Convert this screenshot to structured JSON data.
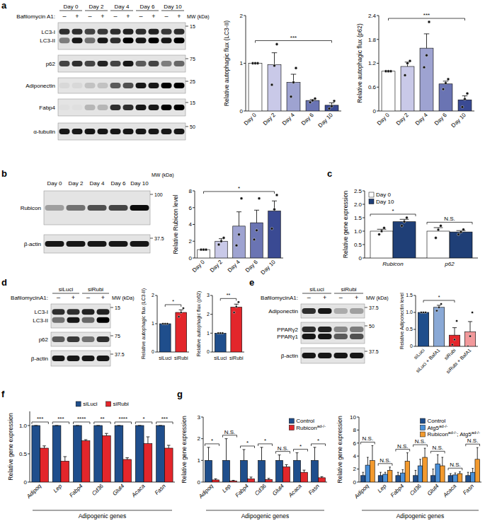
{
  "panel_labels": [
    "a",
    "b",
    "c",
    "d",
    "e",
    "f",
    "g"
  ],
  "blots": [
    {
      "groups": [
        {
          "label": "Day 0",
          "span": 2
        },
        {
          "label": "Day 2",
          "span": 2
        },
        {
          "label": "Day 4",
          "span": 2
        },
        {
          "label": "Day 6",
          "span": 2
        },
        {
          "label": "Day 10",
          "span": 2
        }
      ],
      "treatment": {
        "label": "Bafilomycin A1:",
        "marks": [
          "–",
          "+",
          "–",
          "+",
          "–",
          "+",
          "–",
          "+",
          "–",
          "+"
        ]
      },
      "mw_title": "MW (kDa)",
      "rows": [
        {
          "labels": [
            "LC3-I",
            "LC3-II"
          ],
          "bands": [
            [
              0.8,
              0.8,
              0.7,
              0.75,
              0.8,
              0.85,
              0.8,
              0.85,
              0.75,
              0.8
            ],
            [
              0.45,
              0.9,
              0.5,
              0.9,
              0.8,
              1,
              0.9,
              1,
              0.9,
              1
            ]
          ],
          "mw": "15"
        },
        {
          "labels": [
            "p62"
          ],
          "bands": [
            [
              0.7,
              0.8,
              0.7,
              0.85,
              0.7,
              0.9,
              0.6,
              0.7,
              0.45,
              0.55
            ]
          ],
          "mw": "75"
        },
        {
          "labels": [
            "Adiponectin"
          ],
          "bands": [
            [
              0.05,
              0.05,
              0.15,
              0.15,
              0.6,
              0.65,
              0.9,
              0.9,
              1,
              1
            ]
          ],
          "mw": "25"
        },
        {
          "labels": [
            "Fabp4"
          ],
          "bands": [
            [
              0.02,
              0.02,
              0.2,
              0.2,
              0.8,
              0.8,
              0.9,
              0.9,
              1,
              1
            ]
          ],
          "mw": "15"
        },
        {
          "labels": [
            "α-tubulin"
          ],
          "bands": [
            [
              0.9,
              0.9,
              0.9,
              0.9,
              0.9,
              0.9,
              0.9,
              0.9,
              0.9,
              0.9
            ]
          ],
          "mw": "50"
        }
      ]
    },
    {
      "groups": [
        {
          "label": "Day 0",
          "span": 1
        },
        {
          "label": "Day 2",
          "span": 1
        },
        {
          "label": "Day 4",
          "span": 1
        },
        {
          "label": "Day 6",
          "span": 1
        },
        {
          "label": "Day 10",
          "span": 1
        }
      ],
      "mw_title": "MW (kDa)",
      "rows": [
        {
          "labels": [
            "Rubicon"
          ],
          "bands": [
            [
              0.3,
              0.5,
              0.65,
              0.7,
              0.95
            ]
          ],
          "mw": "100"
        },
        {
          "labels": [
            "β-actin"
          ],
          "bands": [
            [
              0.9,
              0.9,
              0.9,
              0.9,
              0.9
            ]
          ],
          "mw": "37.5"
        }
      ]
    },
    {
      "groups": [
        {
          "label": "siLuci",
          "span": 2
        },
        {
          "label": "siRubi",
          "span": 2
        }
      ],
      "treatment": {
        "label": "BafilomycinA1:",
        "marks": [
          "–",
          "+",
          "–",
          "+"
        ]
      },
      "mw_title": "MW (kDa)",
      "rows": [
        {
          "labels": [
            "LC3-I",
            "LC3-II"
          ],
          "bands": [
            [
              0.8,
              0.8,
              0.85,
              0.85
            ],
            [
              0.5,
              0.9,
              0.55,
              1
            ]
          ],
          "mw": "15"
        },
        {
          "labels": [
            "p62"
          ],
          "bands": [
            [
              0.6,
              0.75,
              0.5,
              0.8
            ]
          ],
          "mw": "75"
        },
        {
          "labels": [
            "β-actin"
          ],
          "bands": [
            [
              0.9,
              0.9,
              0.9,
              0.9
            ]
          ],
          "mw": "37.5"
        }
      ]
    },
    {
      "groups": [
        {
          "label": "siLuci",
          "span": 2
        },
        {
          "label": "siRubi",
          "span": 2
        }
      ],
      "treatment": {
        "label": "BafilomycinA1:",
        "marks": [
          "–",
          "+",
          "–",
          "+"
        ]
      },
      "mw_title": "MW (kDa)",
      "rows": [
        {
          "labels": [
            "Adiponectin"
          ],
          "bands": [
            [
              0.8,
              0.9,
              0.25,
              0.3
            ]
          ],
          "mw": "37.5"
        },
        {
          "labels": [
            "PPARγ2",
            "PPARγ1"
          ],
          "bands": [
            [
              0.8,
              0.85,
              0.4,
              0.45
            ],
            [
              0.9,
              0.9,
              0.6,
              0.65
            ]
          ],
          "mw": "50"
        },
        {
          "labels": [
            "β-actin"
          ],
          "bands": [
            [
              0.9,
              0.9,
              0.9,
              0.9
            ]
          ],
          "mw": "37.5"
        }
      ]
    }
  ],
  "chart_data": [
    {
      "type": "bar",
      "y_label": "Relative autophagic flux (LC3-II)",
      "categories": [
        "Day 0",
        "Day 2",
        "Day 4",
        "Day 6",
        "Day 10"
      ],
      "ylim": [
        0,
        2
      ],
      "yticks": [
        0,
        1,
        2
      ],
      "series": [
        {
          "colors": [
            "#ffffff",
            "#c9c9e8",
            "#9ea3d1",
            "#6a74b3",
            "#3a4a93"
          ],
          "values": [
            1,
            0.97,
            0.6,
            0.22,
            0.12
          ],
          "errors": [
            0,
            0.25,
            0.17,
            0.02,
            0.05
          ],
          "points": [
            [
              1,
              1,
              1
            ],
            [
              0.55,
              0.95,
              1.4
            ],
            [
              0.3,
              0.6,
              0.9
            ],
            [
              0.18,
              0.22,
              0.26
            ],
            [
              0.05,
              0.1,
              0.21
            ]
          ]
        }
      ],
      "brackets": [
        {
          "text": "***",
          "between": [
            "Day 0",
            "Day 10"
          ]
        }
      ]
    },
    {
      "type": "bar",
      "y_label": "Relative autophagic flux (p62)",
      "categories": [
        "Day 0",
        "Day 2",
        "Day 4",
        "Day 6",
        "Day 10"
      ],
      "ylim": [
        0,
        2.4
      ],
      "yticks": [
        0,
        0.6,
        1.2,
        1.8,
        2.4
      ],
      "series": [
        {
          "colors": [
            "#ffffff",
            "#c9c9e8",
            "#9ea3d1",
            "#6a74b3",
            "#3a4a93"
          ],
          "values": [
            1,
            1.12,
            1.58,
            0.68,
            0.28
          ],
          "errors": [
            0,
            0.11,
            0.36,
            0.07,
            0.1
          ],
          "points": [
            [
              1,
              1,
              1
            ],
            [
              0.9,
              1.2,
              1.26
            ],
            [
              1.1,
              1.4,
              2.24
            ],
            [
              0.55,
              0.7,
              0.8
            ],
            [
              0.1,
              0.3,
              0.44
            ]
          ]
        }
      ],
      "brackets": [
        {
          "text": "***",
          "between": [
            "Day 0",
            "Day 10"
          ]
        }
      ]
    },
    {
      "type": "bar",
      "y_label": "Relative Rubicon level",
      "categories": [
        "Day 0",
        "Day 2",
        "Day 4",
        "Day 6",
        "Day 10"
      ],
      "ylim": [
        0,
        8
      ],
      "yticks": [
        0,
        2,
        4,
        6,
        8
      ],
      "series": [
        {
          "colors": [
            "#ffffff",
            "#c9c9e8",
            "#9ea3d1",
            "#6a74b3",
            "#3a4a93"
          ],
          "values": [
            1,
            2,
            3.8,
            4.2,
            5.6
          ],
          "errors": [
            0,
            0.3,
            1.7,
            1.5,
            1.2
          ],
          "points": [
            [
              1,
              1,
              1
            ],
            [
              1.6,
              2.0,
              2.4
            ],
            [
              1.5,
              2.8,
              7.1
            ],
            [
              2.2,
              3.3,
              7.1
            ],
            [
              3.5,
              5.8,
              7.5
            ]
          ]
        }
      ],
      "brackets": [
        {
          "text": "*",
          "between": [
            "Day 0",
            "Day 10"
          ]
        }
      ]
    },
    {
      "type": "bar",
      "y_label": "Relative gene expression",
      "categories": [
        "Rubicon",
        "p62"
      ],
      "ylim": [
        0,
        2.5
      ],
      "yticks": [
        0,
        0.5,
        {
          "value": 1,
          "label": "1.0"
        },
        1.5,
        {
          "value": 2,
          "label": "2.0"
        },
        2.5
      ],
      "series": [
        {
          "name": "Day 0",
          "color": "#ffffff",
          "values": [
            1,
            1
          ],
          "errors": [
            0.07,
            0.13
          ],
          "points": [
            [
              0.88,
              1.0,
              1.12
            ],
            [
              0.75,
              1.05,
              1.2
            ]
          ]
        },
        {
          "name": "Day 10",
          "color": "#1f3f77",
          "values": [
            1.35,
            0.97
          ],
          "errors": [
            0.09,
            0.05
          ],
          "points": [
            [
              1.2,
              1.35,
              1.5
            ],
            [
              0.88,
              0.97,
              1.06
            ]
          ]
        }
      ],
      "annotations": [
        "*",
        "N.S."
      ],
      "legend": "top-left"
    },
    {
      "type": "bar",
      "y_label": "Relative autophagic flux (LC3-II)",
      "categories": [
        "siLuci",
        "siRubi"
      ],
      "ylim": [
        0,
        2
      ],
      "yticks": [
        0,
        1,
        2
      ],
      "series": [
        {
          "colors": [
            "#1f4e8c",
            "#e3262b"
          ],
          "values": [
            1,
            1.4
          ],
          "errors": [
            0,
            0.09
          ],
          "points": [
            [
              1,
              1,
              1
            ],
            [
              1.25,
              1.4,
              1.55
            ]
          ]
        }
      ],
      "brackets": [
        {
          "text": "*",
          "between": [
            "siLuci",
            "siRubi"
          ]
        }
      ]
    },
    {
      "type": "bar",
      "y_label": "Relative autophagic flux (p62)",
      "categories": [
        "siLuci",
        "siRubi"
      ],
      "ylim": [
        0,
        3
      ],
      "yticks": [
        0,
        1,
        2,
        3
      ],
      "series": [
        {
          "colors": [
            "#1f4e8c",
            "#e3262b"
          ],
          "values": [
            1,
            2.38
          ],
          "errors": [
            0,
            0.16
          ],
          "points": [
            [
              1,
              1,
              1
            ],
            [
              2.1,
              2.4,
              2.65
            ]
          ]
        }
      ],
      "brackets": [
        {
          "text": "**",
          "between": [
            "siLuci",
            "siRubi"
          ]
        }
      ]
    },
    {
      "type": "bar",
      "y_label": "Relative Adiponectin level",
      "categories": [
        "siLuci",
        "siLuci + BafA1",
        "siRubi",
        "siRubi + BafA1"
      ],
      "ylim": [
        0,
        1.5
      ],
      "yticks": [
        0,
        0.5,
        {
          "value": 1,
          "label": "1.0"
        },
        1.5
      ],
      "series": [
        {
          "colors": [
            "#1f4e8c",
            "#8aa9d6",
            "#e3262b",
            "#f2999b"
          ],
          "values": [
            1,
            1.15,
            0.33,
            0.43
          ],
          "errors": [
            0,
            0.06,
            0.22,
            0.3
          ],
          "points": [
            [
              1,
              1,
              1
            ],
            [
              1.05,
              1.15,
              1.25
            ],
            [
              0.05,
              0.2,
              0.75
            ],
            [
              0.0,
              0.3,
              1.0
            ]
          ]
        }
      ],
      "brackets": [
        {
          "text": "*",
          "between": [
            "siLuci",
            "siRubi"
          ]
        }
      ]
    },
    {
      "type": "bar",
      "y_label": "Relative gene expression",
      "x_label": "Adipogenic genes",
      "categories": [
        "Adipoq",
        "Lep",
        "Fabp4",
        "Cd36",
        "Glut4",
        "Acaca",
        "Fasn"
      ],
      "ylim": [
        0,
        1.25
      ],
      "yticks": [
        0,
        0.5,
        {
          "value": 1,
          "label": "1.0"
        }
      ],
      "series": [
        {
          "name": "siLuci",
          "color": "#1f4e8c",
          "values": [
            1,
            1,
            1,
            1,
            1,
            1,
            1
          ],
          "errors": [
            0,
            0,
            0,
            0,
            0,
            0,
            0
          ]
        },
        {
          "name": "siRubi",
          "color": "#e3262b",
          "values": [
            0.6,
            0.37,
            0.73,
            0.82,
            0.4,
            0.68,
            0.6
          ],
          "errors": [
            0.04,
            0.08,
            0.02,
            0.04,
            0.03,
            0.12,
            0.05
          ]
        }
      ],
      "annotations": [
        "***",
        "***",
        "****",
        "**",
        "****",
        "*",
        "***"
      ],
      "legend": "top"
    },
    {
      "type": "bar",
      "y_label": "Relative gene expression",
      "x_label": "Adipogenic genes",
      "categories": [
        "Adipoq",
        "Lep",
        "Fabp4",
        "Cd36",
        "Glut4",
        "Acaca",
        "Fasn"
      ],
      "ylim": [
        0,
        3
      ],
      "yticks": [
        0,
        1,
        2,
        3
      ],
      "series": [
        {
          "name": "Control",
          "color": "#1f4e8c",
          "values": [
            1,
            1,
            1,
            1,
            1,
            1,
            1
          ],
          "errors": [
            0.6,
            1.0,
            0.5,
            0.6,
            0.25,
            0.35,
            0.6
          ]
        },
        {
          "name": [
            {
              "text": "Rubicon",
              "sup": "ad-/-"
            }
          ],
          "color": "#e3262b",
          "values": [
            0.1,
            0.05,
            0.15,
            0.12,
            0.7,
            0.45,
            0.2
          ],
          "errors": [
            0.05,
            0.03,
            0.08,
            0.05,
            0.1,
            0.1,
            0.05
          ]
        }
      ],
      "annotations": [
        "*",
        "N.S.",
        "*",
        "*",
        "N.S.",
        "*",
        "*"
      ],
      "legend": "top-right"
    },
    {
      "type": "bar",
      "y_label": "Relative gene expression",
      "x_label": "Adipogenic genes",
      "categories": [
        "Adipoq",
        "Lep",
        "Fabp4",
        "Cd36",
        "Glut4",
        "Acaca",
        "Fasn"
      ],
      "ylim": [
        0,
        10
      ],
      "yticks": [
        0,
        2,
        4,
        6,
        8,
        10
      ],
      "series": [
        {
          "name": "Control",
          "color": "#1f4e8c",
          "values": [
            1,
            1,
            1,
            1,
            1,
            1,
            1
          ],
          "errors": [
            0.5,
            0.5,
            0.5,
            0.8,
            1.0,
            0.3,
            0.5
          ]
        },
        {
          "name": [
            {
              "text": "Atg5",
              "sup": "ad-/-"
            }
          ],
          "color": "#4a90d9",
          "values": [
            2.6,
            1.2,
            1.4,
            2.5,
            2.8,
            1.1,
            1.5
          ],
          "errors": [
            1.2,
            0.3,
            0.5,
            1.0,
            1.4,
            0.3,
            0.6
          ]
        },
        {
          "name": [
            {
              "text": "Rubicon",
              "sup": "ad-/-"
            },
            {
              "text": "; Atg5",
              "sup": "ad-/-"
            }
          ],
          "color": "#f39a2e",
          "values": [
            3.3,
            1.8,
            3.2,
            3.8,
            2.5,
            1.3,
            3.5
          ],
          "errors": [
            2.3,
            0.5,
            1.3,
            1.4,
            1.3,
            0.3,
            1.8
          ]
        }
      ],
      "annotations": [
        "N.S.",
        "N.S.",
        "N.S.",
        "N.S.",
        "N.S.",
        "N.S.",
        "N.S."
      ],
      "legend": "top-right"
    }
  ]
}
